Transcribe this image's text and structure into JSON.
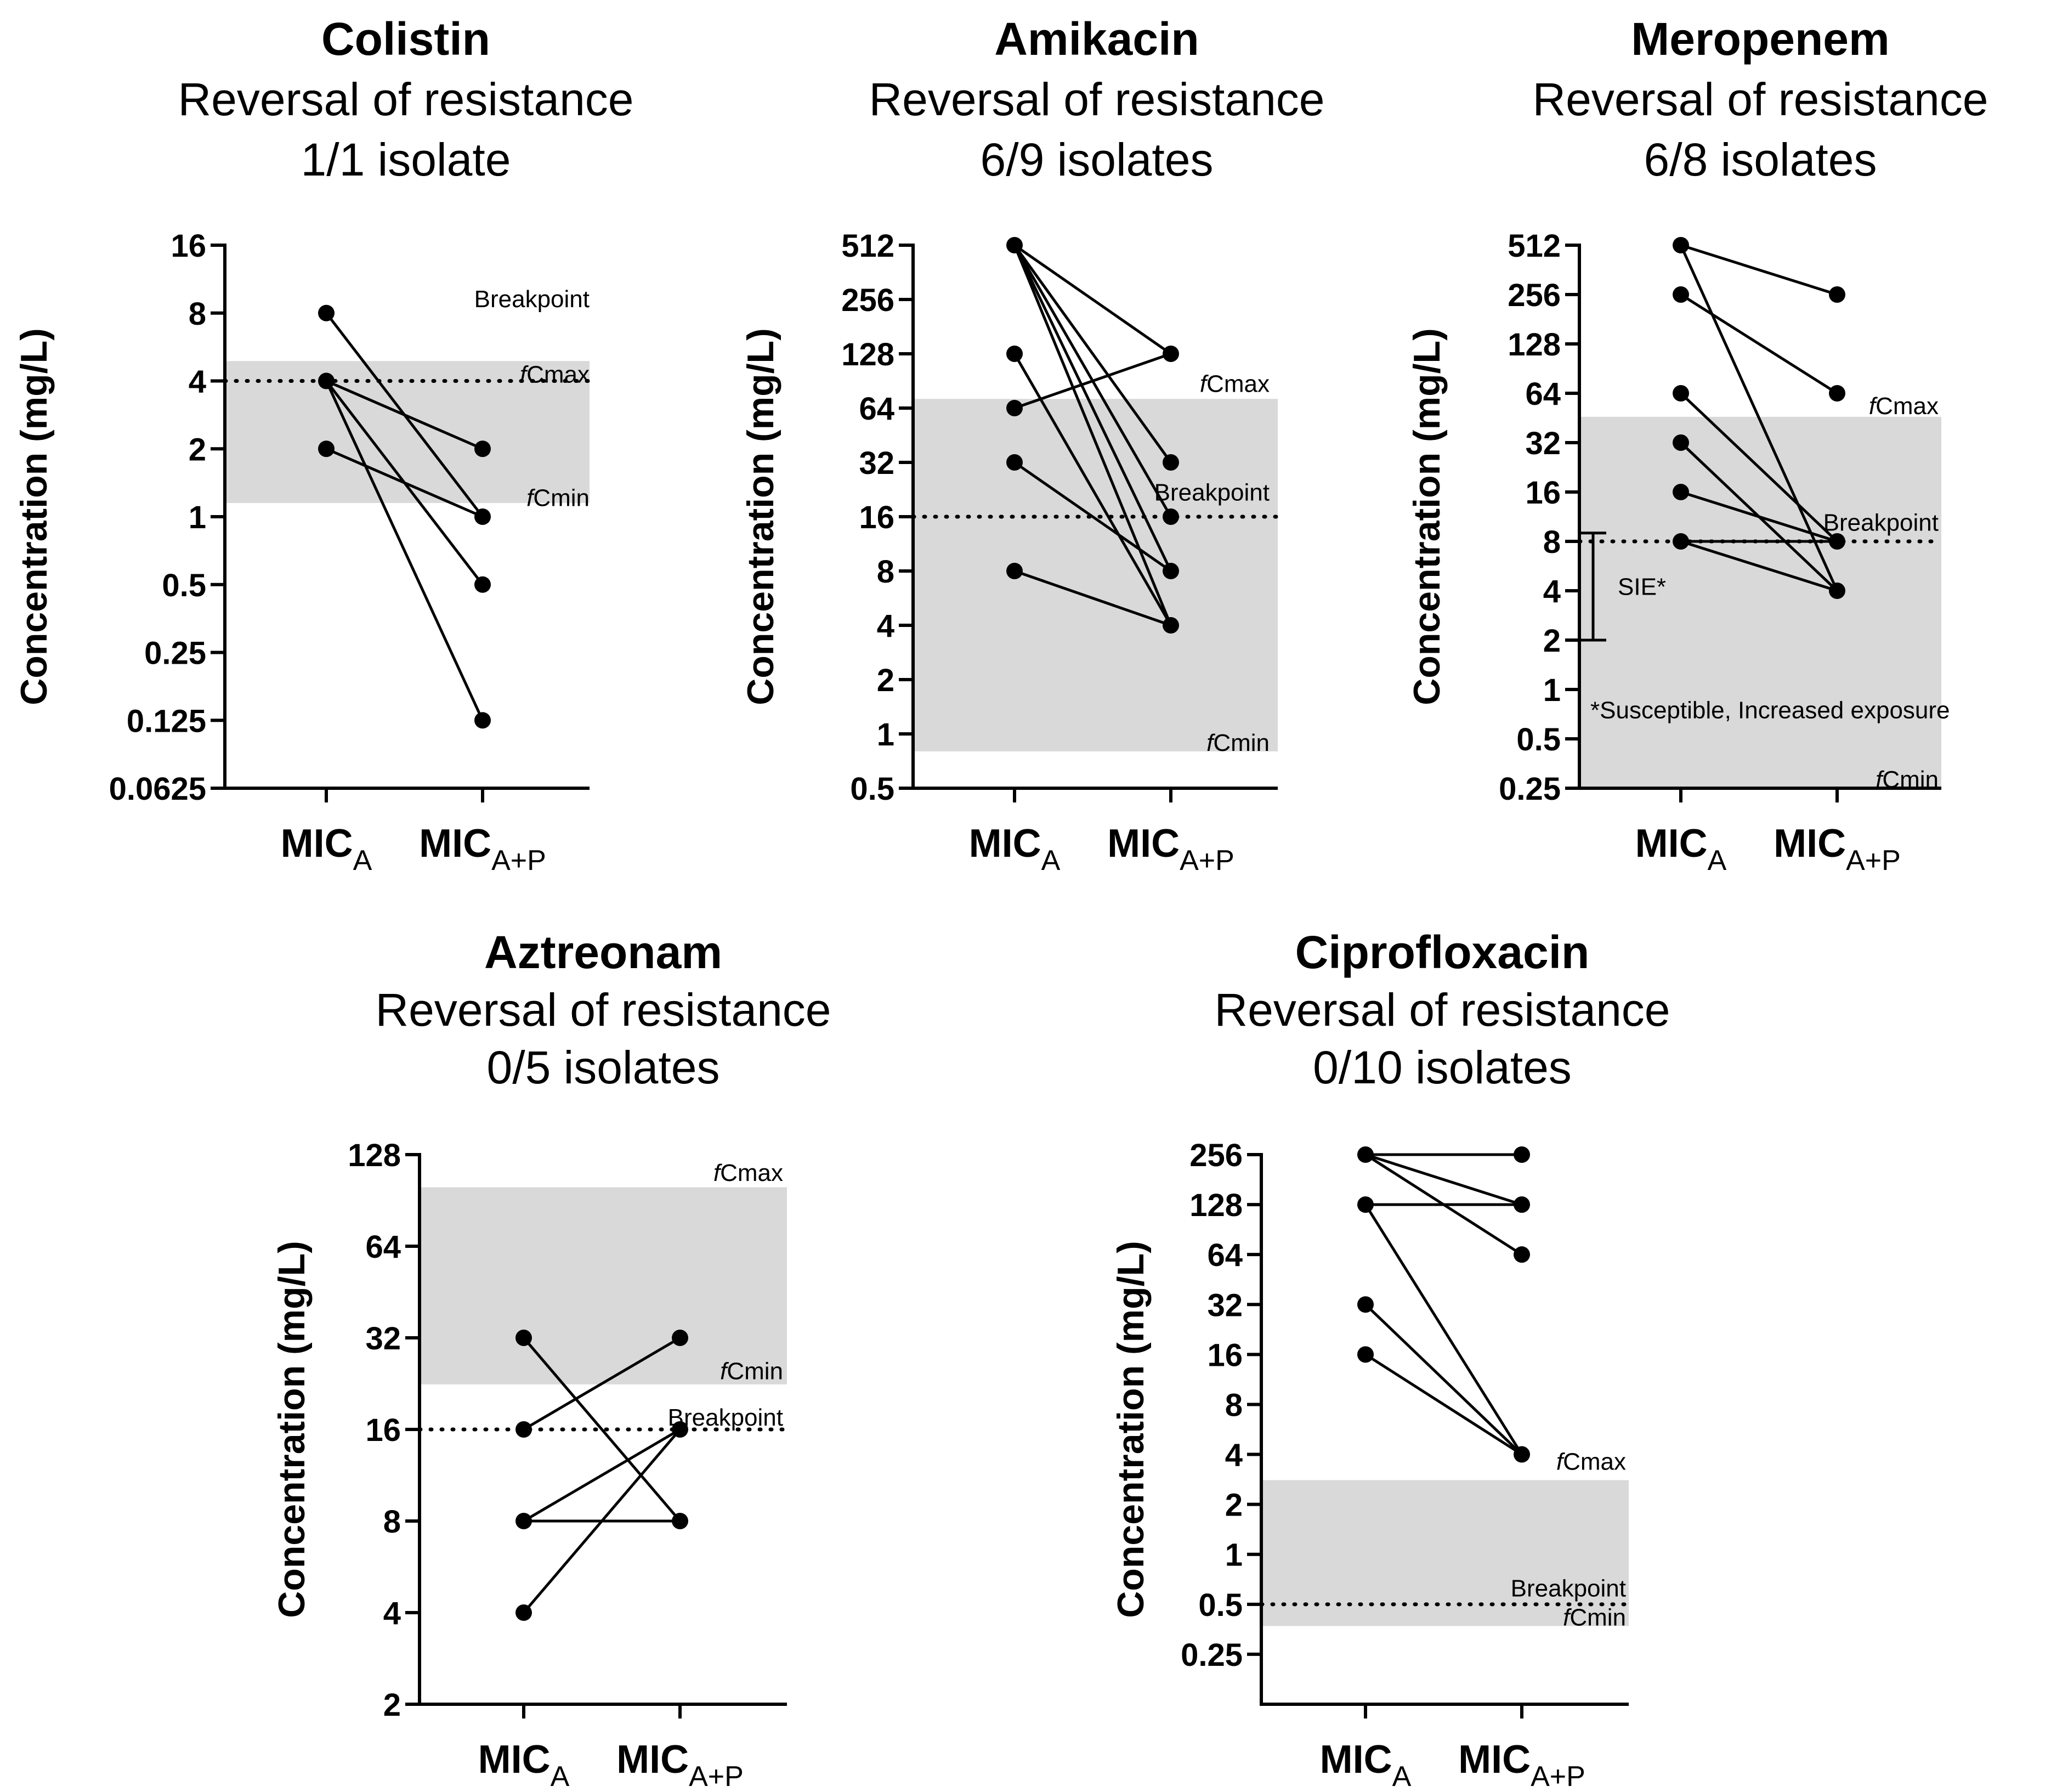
{
  "y_axis_label": "Concentration (mg/L)",
  "chart_data": [
    {
      "type": "line",
      "title": "Colistin",
      "subtitle": "Reversal of resistance",
      "subtitle2": "1/1 isolate",
      "ylabel": "Concentration (mg/L)",
      "y_scale": "log2",
      "ylim": [
        0.0625,
        16
      ],
      "ytick_labels": [
        "0.0625",
        "0.125",
        "0.25",
        "0.5",
        "1",
        "2",
        "4",
        "8",
        "16"
      ],
      "categories": [
        {
          "main": "MIC",
          "sub": "A"
        },
        {
          "main": "MIC",
          "sub": "A+P"
        }
      ],
      "pairs": [
        [
          8,
          1
        ],
        [
          4,
          2
        ],
        [
          4,
          0.5
        ],
        [
          4,
          0.125
        ],
        [
          2,
          1
        ]
      ],
      "band": {
        "low": 1.15,
        "high": 4.9
      },
      "breakpoint": 4,
      "annotations": [
        {
          "label": "Breakpoint",
          "value": 9.3
        },
        {
          "italic": "f",
          "label": "Cmax",
          "value": 4.3
        },
        {
          "italic": "f",
          "label": "Cmin",
          "value": 1.22
        }
      ]
    },
    {
      "type": "line",
      "title": "Amikacin",
      "subtitle": "Reversal of resistance",
      "subtitle2": "6/9 isolates",
      "ylabel": "Concentration (mg/L)",
      "y_scale": "log2",
      "ylim": [
        0.5,
        512
      ],
      "ytick_labels": [
        "0.5",
        "1",
        "2",
        "4",
        "8",
        "16",
        "32",
        "64",
        "128",
        "256",
        "512"
      ],
      "categories": [
        {
          "main": "MIC",
          "sub": "A"
        },
        {
          "main": "MIC",
          "sub": "A+P"
        }
      ],
      "pairs": [
        [
          512,
          128
        ],
        [
          512,
          32
        ],
        [
          512,
          16
        ],
        [
          512,
          8
        ],
        [
          512,
          4
        ],
        [
          128,
          4
        ],
        [
          64,
          128
        ],
        [
          32,
          8
        ],
        [
          8,
          4
        ]
      ],
      "band": {
        "low": 0.8,
        "high": 72
      },
      "breakpoint": 16,
      "annotations": [
        {
          "italic": "f",
          "label": "Cmax",
          "value": 88
        },
        {
          "label": "Breakpoint",
          "value": 22
        },
        {
          "italic": "f",
          "label": "Cmin",
          "value": 0.9
        }
      ]
    },
    {
      "type": "line",
      "title": "Meropenem",
      "subtitle": "Reversal of resistance",
      "subtitle2": "6/8 isolates",
      "ylabel": "Concentration (mg/L)",
      "y_scale": "log2",
      "ylim": [
        0.25,
        512
      ],
      "ytick_labels": [
        "0.25",
        "0.5",
        "1",
        "2",
        "4",
        "8",
        "16",
        "32",
        "64",
        "128",
        "256",
        "512"
      ],
      "categories": [
        {
          "main": "MIC",
          "sub": "A"
        },
        {
          "main": "MIC",
          "sub": "A+P"
        }
      ],
      "pairs": [
        [
          512,
          256
        ],
        [
          512,
          4
        ],
        [
          256,
          64
        ],
        [
          64,
          8
        ],
        [
          32,
          4
        ],
        [
          16,
          8
        ],
        [
          8,
          8
        ],
        [
          8,
          4
        ]
      ],
      "band": {
        "low": 0.25,
        "high": 46
      },
      "breakpoint": 8,
      "sie_range": [
        2,
        9
      ],
      "sie_label": "SIE*",
      "footnote": "*Susceptible, Increased exposure",
      "annotations": [
        {
          "italic": "f",
          "label": "Cmax",
          "value": 54
        },
        {
          "label": "Breakpoint",
          "value": 10.5
        },
        {
          "italic": "f",
          "label": "Cmin",
          "value": 0.285
        }
      ]
    },
    {
      "type": "line",
      "title": "Aztreonam",
      "subtitle": "Reversal of resistance",
      "subtitle2": "0/5 isolates",
      "ylabel": "Concentration (mg/L)",
      "y_scale": "log2",
      "ylim": [
        2,
        128
      ],
      "ytick_labels": [
        "2",
        "4",
        "8",
        "16",
        "32",
        "64",
        "128"
      ],
      "categories": [
        {
          "main": "MIC",
          "sub": "A"
        },
        {
          "main": "MIC",
          "sub": "A+P"
        }
      ],
      "pairs": [
        [
          32,
          8
        ],
        [
          16,
          32
        ],
        [
          8,
          16
        ],
        [
          8,
          8
        ],
        [
          4,
          16
        ]
      ],
      "band": {
        "low": 22.5,
        "high": 100
      },
      "breakpoint": 16,
      "annotations": [
        {
          "italic": "f",
          "label": "Cmax",
          "value": 112
        },
        {
          "italic": "f",
          "label": "Cmin",
          "value": 25
        },
        {
          "label": "Breakpoint",
          "value": 17.6
        }
      ]
    },
    {
      "type": "line",
      "title": "Ciprofloxacin",
      "subtitle": "Reversal of resistance",
      "subtitle2": "0/10 isolates",
      "ylabel": "Concentration (mg/L)",
      "y_scale": "log2",
      "ylim": [
        0.125,
        256
      ],
      "ytick_labels": [
        "0.25",
        "0.5",
        "1",
        "2",
        "4",
        "8",
        "16",
        "32",
        "64",
        "128",
        "256"
      ],
      "categories": [
        {
          "main": "MIC",
          "sub": "A"
        },
        {
          "main": "MIC",
          "sub": "A+P"
        }
      ],
      "pairs": [
        [
          256,
          256
        ],
        [
          256,
          128
        ],
        [
          256,
          64
        ],
        [
          128,
          128
        ],
        [
          128,
          4
        ],
        [
          32,
          4
        ],
        [
          16,
          4
        ]
      ],
      "band": {
        "low": 0.37,
        "high": 2.8
      },
      "breakpoint": 0.5,
      "annotations": [
        {
          "italic": "f",
          "label": "Cmax",
          "value": 3.65
        },
        {
          "label": "Breakpoint",
          "value": 0.63
        },
        {
          "italic": "f",
          "label": "Cmin",
          "value": 0.42
        }
      ]
    }
  ]
}
